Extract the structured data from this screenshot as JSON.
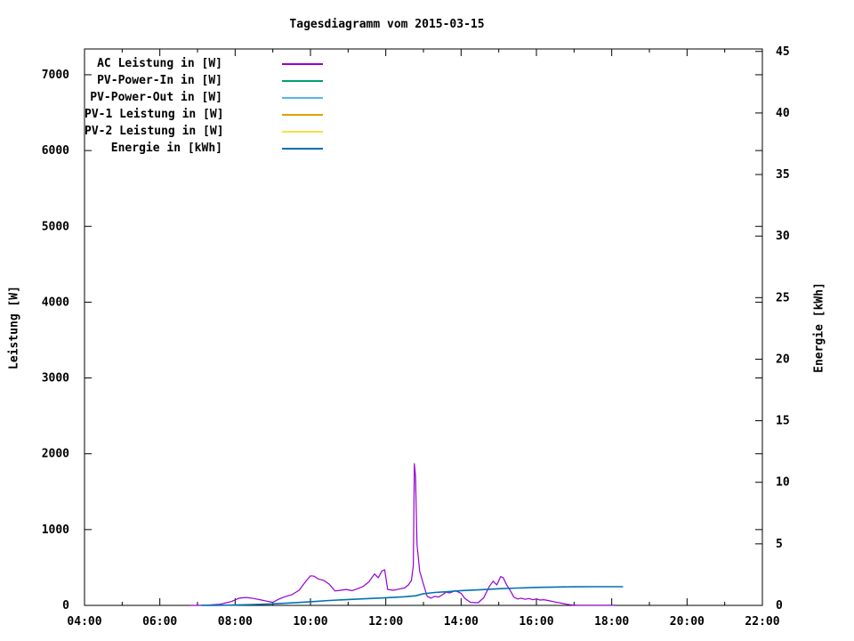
{
  "page": {
    "background": "#ffffff"
  },
  "chart_data": {
    "type": "line",
    "title": "Tagesdiagramm vom 2015-03-15",
    "grid": false,
    "legend_position": "top-left-inside",
    "x_axis": {
      "range": [
        4,
        22
      ],
      "tick_hours": [
        4,
        6,
        8,
        10,
        12,
        14,
        16,
        18,
        20,
        22
      ],
      "tick_labels": [
        "04:00",
        "06:00",
        "08:00",
        "10:00",
        "12:00",
        "14:00",
        "16:00",
        "18:00",
        "20:00",
        "22:00"
      ],
      "minor_tick_hours": [
        5,
        7,
        9,
        11,
        13,
        15,
        17,
        19,
        21
      ]
    },
    "y_left": {
      "label": "Leistung [W]",
      "range": [
        0,
        7340
      ],
      "ticks": [
        0,
        1000,
        2000,
        3000,
        4000,
        5000,
        6000,
        7000
      ]
    },
    "y_right": {
      "label": "Energie [kWh]",
      "range": [
        0,
        45.2
      ],
      "ticks": [
        0,
        5,
        10,
        15,
        20,
        25,
        30,
        35,
        40,
        45
      ]
    },
    "series": [
      {
        "name": "AC Leistung in [W]",
        "color": "#9400D3",
        "axis": "left",
        "points": [
          [
            6.8,
            0
          ],
          [
            7.0,
            0
          ],
          [
            7.3,
            5
          ],
          [
            7.6,
            15
          ],
          [
            7.9,
            50
          ],
          [
            8.1,
            95
          ],
          [
            8.3,
            105
          ],
          [
            8.5,
            90
          ],
          [
            8.7,
            70
          ],
          [
            8.85,
            55
          ],
          [
            9.0,
            40
          ],
          [
            9.15,
            80
          ],
          [
            9.3,
            110
          ],
          [
            9.5,
            140
          ],
          [
            9.7,
            200
          ],
          [
            9.85,
            300
          ],
          [
            10.0,
            390
          ],
          [
            10.1,
            385
          ],
          [
            10.2,
            350
          ],
          [
            10.35,
            330
          ],
          [
            10.5,
            280
          ],
          [
            10.65,
            190
          ],
          [
            10.8,
            200
          ],
          [
            10.95,
            210
          ],
          [
            11.1,
            195
          ],
          [
            11.25,
            220
          ],
          [
            11.4,
            250
          ],
          [
            11.55,
            310
          ],
          [
            11.7,
            415
          ],
          [
            11.8,
            365
          ],
          [
            11.9,
            455
          ],
          [
            11.97,
            470
          ],
          [
            12.05,
            210
          ],
          [
            12.2,
            200
          ],
          [
            12.35,
            215
          ],
          [
            12.5,
            230
          ],
          [
            12.6,
            270
          ],
          [
            12.68,
            330
          ],
          [
            12.73,
            520
          ],
          [
            12.76,
            1870
          ],
          [
            12.79,
            1700
          ],
          [
            12.83,
            800
          ],
          [
            12.9,
            450
          ],
          [
            13.0,
            280
          ],
          [
            13.05,
            200
          ],
          [
            13.1,
            120
          ],
          [
            13.2,
            95
          ],
          [
            13.3,
            120
          ],
          [
            13.4,
            110
          ],
          [
            13.5,
            140
          ],
          [
            13.6,
            175
          ],
          [
            13.7,
            165
          ],
          [
            13.85,
            195
          ],
          [
            14.0,
            160
          ],
          [
            14.1,
            90
          ],
          [
            14.25,
            40
          ],
          [
            14.45,
            35
          ],
          [
            14.6,
            100
          ],
          [
            14.75,
            250
          ],
          [
            14.85,
            320
          ],
          [
            14.95,
            270
          ],
          [
            15.05,
            380
          ],
          [
            15.12,
            365
          ],
          [
            15.2,
            280
          ],
          [
            15.3,
            200
          ],
          [
            15.4,
            110
          ],
          [
            15.5,
            85
          ],
          [
            15.6,
            95
          ],
          [
            15.7,
            80
          ],
          [
            15.8,
            90
          ],
          [
            15.9,
            75
          ],
          [
            16.0,
            85
          ],
          [
            16.1,
            70
          ],
          [
            16.2,
            75
          ],
          [
            16.35,
            60
          ],
          [
            16.5,
            45
          ],
          [
            16.65,
            30
          ],
          [
            16.8,
            15
          ],
          [
            16.95,
            5
          ],
          [
            17.1,
            2
          ],
          [
            17.5,
            2
          ],
          [
            18.1,
            2
          ]
        ]
      },
      {
        "name": "PV-Power-In in [W]",
        "color": "#009E73",
        "axis": "left",
        "points": []
      },
      {
        "name": "PV-Power-Out in [W]",
        "color": "#56B4E9",
        "axis": "left",
        "points": []
      },
      {
        "name": "PV-1 Leistung in [W]",
        "color": "#E69F00",
        "axis": "left",
        "points": []
      },
      {
        "name": "PV-2 Leistung in [W]",
        "color": "#F0E442",
        "axis": "left",
        "points": []
      },
      {
        "name": "Energie in [kWh]",
        "color": "#0072B2",
        "axis": "right",
        "points": [
          [
            7.1,
            0
          ],
          [
            7.5,
            0.01
          ],
          [
            8,
            0.03
          ],
          [
            8.5,
            0.07
          ],
          [
            9,
            0.12
          ],
          [
            9.5,
            0.2
          ],
          [
            10,
            0.3
          ],
          [
            10.5,
            0.4
          ],
          [
            11,
            0.48
          ],
          [
            11.5,
            0.55
          ],
          [
            12,
            0.62
          ],
          [
            12.5,
            0.7
          ],
          [
            12.8,
            0.78
          ],
          [
            13,
            0.95
          ],
          [
            13.3,
            1.05
          ],
          [
            13.7,
            1.13
          ],
          [
            14,
            1.2
          ],
          [
            14.5,
            1.27
          ],
          [
            15,
            1.35
          ],
          [
            15.5,
            1.41
          ],
          [
            16,
            1.46
          ],
          [
            16.5,
            1.49
          ],
          [
            17,
            1.51
          ],
          [
            17.5,
            1.52
          ],
          [
            18.3,
            1.52
          ]
        ]
      }
    ]
  }
}
